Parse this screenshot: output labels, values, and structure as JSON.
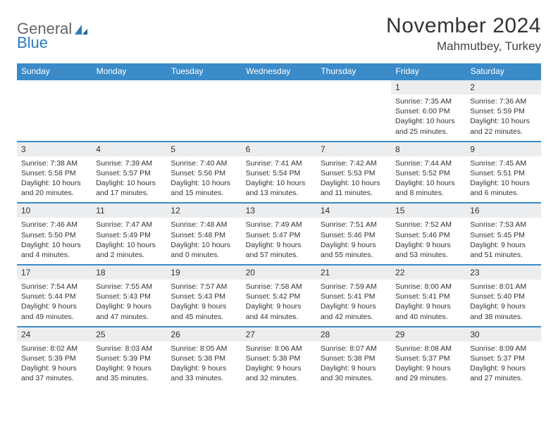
{
  "brand": {
    "part1": "General",
    "part2": "Blue"
  },
  "title": "November 2024",
  "location": "Mahmutbey, Turkey",
  "colors": {
    "header_bg": "#3b8bc9",
    "header_text": "#ffffff",
    "daynum_bg": "#ecedee",
    "border": "#3b8bc9",
    "logo_blue": "#2b7bbf",
    "logo_gray": "#666666",
    "body_text": "#333333"
  },
  "weekdays": [
    "Sunday",
    "Monday",
    "Tuesday",
    "Wednesday",
    "Thursday",
    "Friday",
    "Saturday"
  ],
  "weeks": [
    [
      null,
      null,
      null,
      null,
      null,
      {
        "n": "1",
        "sunrise": "Sunrise: 7:35 AM",
        "sunset": "Sunset: 6:00 PM",
        "day1": "Daylight: 10 hours",
        "day2": "and 25 minutes."
      },
      {
        "n": "2",
        "sunrise": "Sunrise: 7:36 AM",
        "sunset": "Sunset: 5:59 PM",
        "day1": "Daylight: 10 hours",
        "day2": "and 22 minutes."
      }
    ],
    [
      {
        "n": "3",
        "sunrise": "Sunrise: 7:38 AM",
        "sunset": "Sunset: 5:58 PM",
        "day1": "Daylight: 10 hours",
        "day2": "and 20 minutes."
      },
      {
        "n": "4",
        "sunrise": "Sunrise: 7:39 AM",
        "sunset": "Sunset: 5:57 PM",
        "day1": "Daylight: 10 hours",
        "day2": "and 17 minutes."
      },
      {
        "n": "5",
        "sunrise": "Sunrise: 7:40 AM",
        "sunset": "Sunset: 5:56 PM",
        "day1": "Daylight: 10 hours",
        "day2": "and 15 minutes."
      },
      {
        "n": "6",
        "sunrise": "Sunrise: 7:41 AM",
        "sunset": "Sunset: 5:54 PM",
        "day1": "Daylight: 10 hours",
        "day2": "and 13 minutes."
      },
      {
        "n": "7",
        "sunrise": "Sunrise: 7:42 AM",
        "sunset": "Sunset: 5:53 PM",
        "day1": "Daylight: 10 hours",
        "day2": "and 11 minutes."
      },
      {
        "n": "8",
        "sunrise": "Sunrise: 7:44 AM",
        "sunset": "Sunset: 5:52 PM",
        "day1": "Daylight: 10 hours",
        "day2": "and 8 minutes."
      },
      {
        "n": "9",
        "sunrise": "Sunrise: 7:45 AM",
        "sunset": "Sunset: 5:51 PM",
        "day1": "Daylight: 10 hours",
        "day2": "and 6 minutes."
      }
    ],
    [
      {
        "n": "10",
        "sunrise": "Sunrise: 7:46 AM",
        "sunset": "Sunset: 5:50 PM",
        "day1": "Daylight: 10 hours",
        "day2": "and 4 minutes."
      },
      {
        "n": "11",
        "sunrise": "Sunrise: 7:47 AM",
        "sunset": "Sunset: 5:49 PM",
        "day1": "Daylight: 10 hours",
        "day2": "and 2 minutes."
      },
      {
        "n": "12",
        "sunrise": "Sunrise: 7:48 AM",
        "sunset": "Sunset: 5:48 PM",
        "day1": "Daylight: 10 hours",
        "day2": "and 0 minutes."
      },
      {
        "n": "13",
        "sunrise": "Sunrise: 7:49 AM",
        "sunset": "Sunset: 5:47 PM",
        "day1": "Daylight: 9 hours",
        "day2": "and 57 minutes."
      },
      {
        "n": "14",
        "sunrise": "Sunrise: 7:51 AM",
        "sunset": "Sunset: 5:46 PM",
        "day1": "Daylight: 9 hours",
        "day2": "and 55 minutes."
      },
      {
        "n": "15",
        "sunrise": "Sunrise: 7:52 AM",
        "sunset": "Sunset: 5:46 PM",
        "day1": "Daylight: 9 hours",
        "day2": "and 53 minutes."
      },
      {
        "n": "16",
        "sunrise": "Sunrise: 7:53 AM",
        "sunset": "Sunset: 5:45 PM",
        "day1": "Daylight: 9 hours",
        "day2": "and 51 minutes."
      }
    ],
    [
      {
        "n": "17",
        "sunrise": "Sunrise: 7:54 AM",
        "sunset": "Sunset: 5:44 PM",
        "day1": "Daylight: 9 hours",
        "day2": "and 49 minutes."
      },
      {
        "n": "18",
        "sunrise": "Sunrise: 7:55 AM",
        "sunset": "Sunset: 5:43 PM",
        "day1": "Daylight: 9 hours",
        "day2": "and 47 minutes."
      },
      {
        "n": "19",
        "sunrise": "Sunrise: 7:57 AM",
        "sunset": "Sunset: 5:43 PM",
        "day1": "Daylight: 9 hours",
        "day2": "and 45 minutes."
      },
      {
        "n": "20",
        "sunrise": "Sunrise: 7:58 AM",
        "sunset": "Sunset: 5:42 PM",
        "day1": "Daylight: 9 hours",
        "day2": "and 44 minutes."
      },
      {
        "n": "21",
        "sunrise": "Sunrise: 7:59 AM",
        "sunset": "Sunset: 5:41 PM",
        "day1": "Daylight: 9 hours",
        "day2": "and 42 minutes."
      },
      {
        "n": "22",
        "sunrise": "Sunrise: 8:00 AM",
        "sunset": "Sunset: 5:41 PM",
        "day1": "Daylight: 9 hours",
        "day2": "and 40 minutes."
      },
      {
        "n": "23",
        "sunrise": "Sunrise: 8:01 AM",
        "sunset": "Sunset: 5:40 PM",
        "day1": "Daylight: 9 hours",
        "day2": "and 38 minutes."
      }
    ],
    [
      {
        "n": "24",
        "sunrise": "Sunrise: 8:02 AM",
        "sunset": "Sunset: 5:39 PM",
        "day1": "Daylight: 9 hours",
        "day2": "and 37 minutes."
      },
      {
        "n": "25",
        "sunrise": "Sunrise: 8:03 AM",
        "sunset": "Sunset: 5:39 PM",
        "day1": "Daylight: 9 hours",
        "day2": "and 35 minutes."
      },
      {
        "n": "26",
        "sunrise": "Sunrise: 8:05 AM",
        "sunset": "Sunset: 5:38 PM",
        "day1": "Daylight: 9 hours",
        "day2": "and 33 minutes."
      },
      {
        "n": "27",
        "sunrise": "Sunrise: 8:06 AM",
        "sunset": "Sunset: 5:38 PM",
        "day1": "Daylight: 9 hours",
        "day2": "and 32 minutes."
      },
      {
        "n": "28",
        "sunrise": "Sunrise: 8:07 AM",
        "sunset": "Sunset: 5:38 PM",
        "day1": "Daylight: 9 hours",
        "day2": "and 30 minutes."
      },
      {
        "n": "29",
        "sunrise": "Sunrise: 8:08 AM",
        "sunset": "Sunset: 5:37 PM",
        "day1": "Daylight: 9 hours",
        "day2": "and 29 minutes."
      },
      {
        "n": "30",
        "sunrise": "Sunrise: 8:09 AM",
        "sunset": "Sunset: 5:37 PM",
        "day1": "Daylight: 9 hours",
        "day2": "and 27 minutes."
      }
    ]
  ]
}
